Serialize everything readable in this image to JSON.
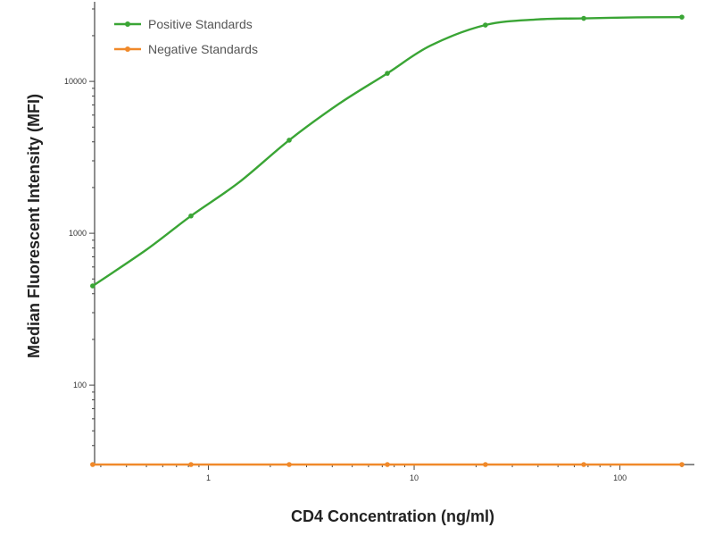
{
  "chart_data": {
    "type": "line",
    "xlabel": "CD4 Concentration (ng/ml)",
    "ylabel": "Median  Fluorescent Intensity  (MFI)",
    "x_scale": "log",
    "y_scale": "log",
    "xlim": [
      0.28,
      230
    ],
    "ylim": [
      30,
      30000
    ],
    "x_ticks": [
      {
        "value": 1,
        "label": "1"
      },
      {
        "value": 10,
        "label": "10"
      },
      {
        "value": 100,
        "label": "100"
      }
    ],
    "y_ticks": [
      {
        "value": 100,
        "label": "100"
      },
      {
        "value": 1000,
        "label": "1000"
      },
      {
        "value": 10000,
        "label": "10000"
      }
    ],
    "grid": false,
    "legend_position": "top-left",
    "series": [
      {
        "name": "Positive Standards",
        "color": "#3aa535",
        "x": [
          0.274,
          0.823,
          2.47,
          7.41,
          22.2,
          66.7,
          200
        ],
        "y": [
          450,
          1300,
          4100,
          11300,
          23500,
          26000,
          26500
        ],
        "curve": [
          [
            0.274,
            450
          ],
          [
            0.5,
            780
          ],
          [
            0.823,
            1300
          ],
          [
            1.4,
            2150
          ],
          [
            2.47,
            4100
          ],
          [
            4.3,
            7100
          ],
          [
            7.41,
            11300
          ],
          [
            12,
            17200
          ],
          [
            22.2,
            23500
          ],
          [
            40,
            25600
          ],
          [
            66.7,
            26000
          ],
          [
            120,
            26400
          ],
          [
            200,
            26500
          ]
        ]
      },
      {
        "name": "Negative Standards",
        "color": "#f0892a",
        "x": [
          0.274,
          0.823,
          2.47,
          7.41,
          22.2,
          66.7,
          200
        ],
        "y": [
          30,
          30,
          30,
          30,
          30,
          30,
          30
        ]
      }
    ]
  }
}
